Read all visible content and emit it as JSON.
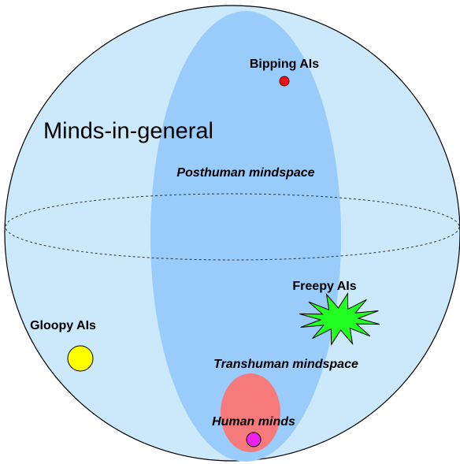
{
  "title": "Minds-in-general",
  "regions": {
    "posthuman": "Posthuman mindspace",
    "transhuman": "Transhuman mindspace",
    "human": "Human minds"
  },
  "points": [
    {
      "label": "Bipping AIs"
    },
    {
      "label": "Freepy AIs"
    },
    {
      "label": "Gloopy AIs"
    }
  ]
}
